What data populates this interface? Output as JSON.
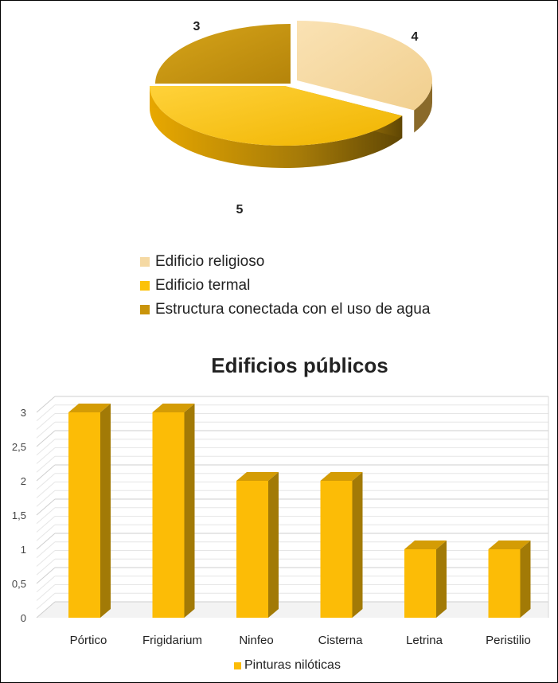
{
  "chart_data": [
    {
      "type": "pie",
      "slices": [
        {
          "name": "Edificio religioso",
          "value": 4,
          "label": "4",
          "color": "#f5d9a3"
        },
        {
          "name": "Edificio termal",
          "value": 5,
          "label": "5",
          "color": "#fcc20a"
        },
        {
          "name": "Estructura conectada con el uso de agua",
          "value": 3,
          "label": "3",
          "color": "#c9940b"
        }
      ],
      "legend_position": "bottom"
    },
    {
      "type": "bar",
      "title": "Edificios públicos",
      "categories": [
        "Pórtico",
        "Frigidarium",
        "Ninfeo",
        "Cisterna",
        "Letrina",
        "Peristilio"
      ],
      "series": [
        {
          "name": "Pinturas nilóticas",
          "values": [
            3,
            3,
            2,
            2,
            1,
            1
          ],
          "color": "#fcbc06"
        }
      ],
      "yticks": [
        "0",
        "0,5",
        "1",
        "1,5",
        "2",
        "2,5",
        "3"
      ],
      "ylim": [
        0,
        3
      ],
      "grid": true,
      "legend_position": "bottom"
    }
  ]
}
